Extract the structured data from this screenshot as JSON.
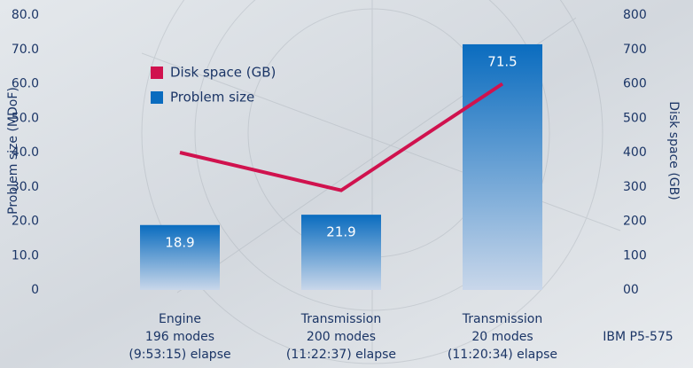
{
  "chart_data": {
    "type": "bar-line",
    "y_label": "Problem size (MDoF)",
    "y2_label": "Disk space (GB)",
    "annotation": "IBM P5-575",
    "categories": [
      [
        "Engine",
        "196 modes",
        "(9:53:15) elapse"
      ],
      [
        "Transmission",
        "200 modes",
        "(11:22:37) elapse"
      ],
      [
        "Transmission",
        "20 modes",
        "(11:20:34) elapse"
      ]
    ],
    "series": [
      {
        "name": "Disk space (GB)",
        "color": "#d0124e",
        "type": "line",
        "axis": "y2",
        "values": [
          400,
          290,
          600
        ]
      },
      {
        "name": "Problem size",
        "color": "#0a6cbf",
        "type": "bar",
        "values": [
          18.9,
          21.9,
          71.5
        ],
        "value_labels": [
          "18.9",
          "21.9",
          "71.5"
        ]
      }
    ],
    "ylim": [
      0,
      80
    ],
    "yticks": [
      0,
      {
        "value": 10,
        "label": "10.0"
      },
      {
        "value": 20,
        "label": "20.0"
      },
      {
        "value": 30,
        "label": "30.0"
      },
      {
        "value": 40,
        "label": "40.0"
      },
      {
        "value": 50,
        "label": "50.0"
      },
      {
        "value": 60,
        "label": "60.0"
      },
      {
        "value": 70,
        "label": "70.0"
      },
      {
        "value": 80,
        "label": "80.0"
      }
    ],
    "y2lim": [
      0,
      800
    ],
    "y2ticks": [
      {
        "value": 0,
        "label": "00"
      },
      100,
      200,
      300,
      400,
      500,
      600,
      700,
      800
    ]
  }
}
